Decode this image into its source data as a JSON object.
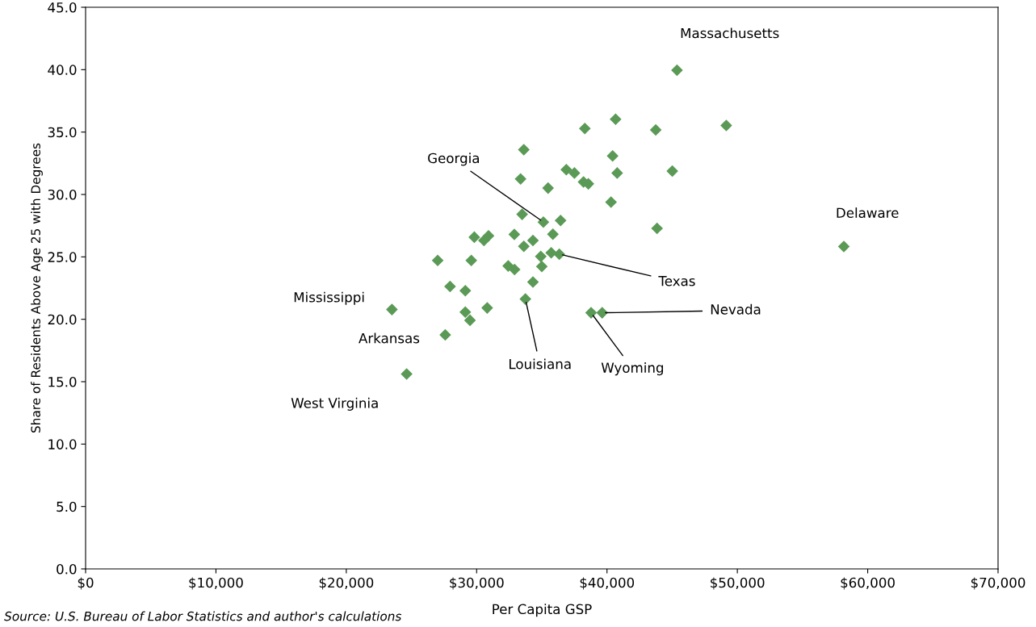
{
  "chart_data": {
    "type": "scatter",
    "xlabel": "Per Capita GSP",
    "ylabel": "Share of Residents Above Age 25 with Degrees",
    "series": [
      {
        "color": "#5b9a56",
        "x": [
          45370,
          40660,
          38300,
          43740,
          49150,
          33620,
          40430,
          36880,
          37500,
          40780,
          45010,
          33370,
          38200,
          38570,
          35480,
          40310,
          33490,
          35120,
          36440,
          43840,
          58170,
          30910,
          32890,
          35850,
          34320,
          33620,
          35720,
          36340,
          34920,
          32420,
          32910,
          35000,
          34320,
          33740,
          30810,
          38780,
          39630,
          29820,
          30560,
          27010,
          29590,
          27960,
          29130,
          23500,
          29130,
          29490,
          27590,
          24630
        ],
        "values": [
          39.96,
          36.03,
          35.28,
          35.17,
          35.53,
          33.59,
          33.09,
          31.99,
          31.72,
          31.72,
          31.87,
          31.24,
          31.0,
          30.85,
          30.51,
          29.39,
          28.41,
          27.79,
          27.92,
          27.29,
          25.83,
          26.69,
          26.8,
          26.82,
          26.32,
          25.85,
          25.33,
          25.22,
          25.03,
          24.27,
          23.99,
          24.23,
          22.98,
          21.62,
          20.91,
          20.52,
          20.52,
          26.58,
          26.32,
          24.72,
          24.72,
          22.63,
          22.29,
          20.78,
          20.58,
          19.92,
          18.75,
          15.62
        ]
      }
    ],
    "xlim": [
      0,
      70000
    ],
    "ylim": [
      0,
      45
    ],
    "xticks": [
      {
        "value": 0,
        "label": "$0"
      },
      {
        "value": 10000,
        "label": "$10,000"
      },
      {
        "value": 20000,
        "label": "$20,000"
      },
      {
        "value": 30000,
        "label": "$30,000"
      },
      {
        "value": 40000,
        "label": "$40,000"
      },
      {
        "value": 50000,
        "label": "$50,000"
      },
      {
        "value": 60000,
        "label": "$60,000"
      },
      {
        "value": 70000,
        "label": "$70,000"
      }
    ],
    "yticks": [
      {
        "value": 0,
        "label": "0.0"
      },
      {
        "value": 5,
        "label": "5.0"
      },
      {
        "value": 10,
        "label": "10.0"
      },
      {
        "value": 15,
        "label": "15.0"
      },
      {
        "value": 20,
        "label": "20.0"
      },
      {
        "value": 25,
        "label": "25.0"
      },
      {
        "value": 30,
        "label": "30.0"
      },
      {
        "value": 35,
        "label": "35.0"
      },
      {
        "value": 40,
        "label": "40.0"
      },
      {
        "value": 45,
        "label": "45.0"
      }
    ],
    "marker": "diamond",
    "grid": false,
    "legend": false,
    "annotations": [
      {
        "text": "Massachusetts",
        "x": 45370,
        "y": 39.96
      },
      {
        "text": "Georgia",
        "x": 35120,
        "y": 27.79
      },
      {
        "text": "Delaware",
        "x": 58170,
        "y": 25.83
      },
      {
        "text": "Texas",
        "x": 36340,
        "y": 25.22
      },
      {
        "text": "Mississippi",
        "x": 23500,
        "y": 20.78
      },
      {
        "text": "Arkansas",
        "x": 27590,
        "y": 18.75
      },
      {
        "text": "West Virginia",
        "x": 24630,
        "y": 15.62
      },
      {
        "text": "Louisiana",
        "x": 33740,
        "y": 21.62
      },
      {
        "text": "Wyoming",
        "x": 38780,
        "y": 20.52
      },
      {
        "text": "Nevada",
        "x": 39630,
        "y": 20.52
      },
      "Source: U.S. Bureau of Labor Statistics and author's calculations"
    ]
  }
}
